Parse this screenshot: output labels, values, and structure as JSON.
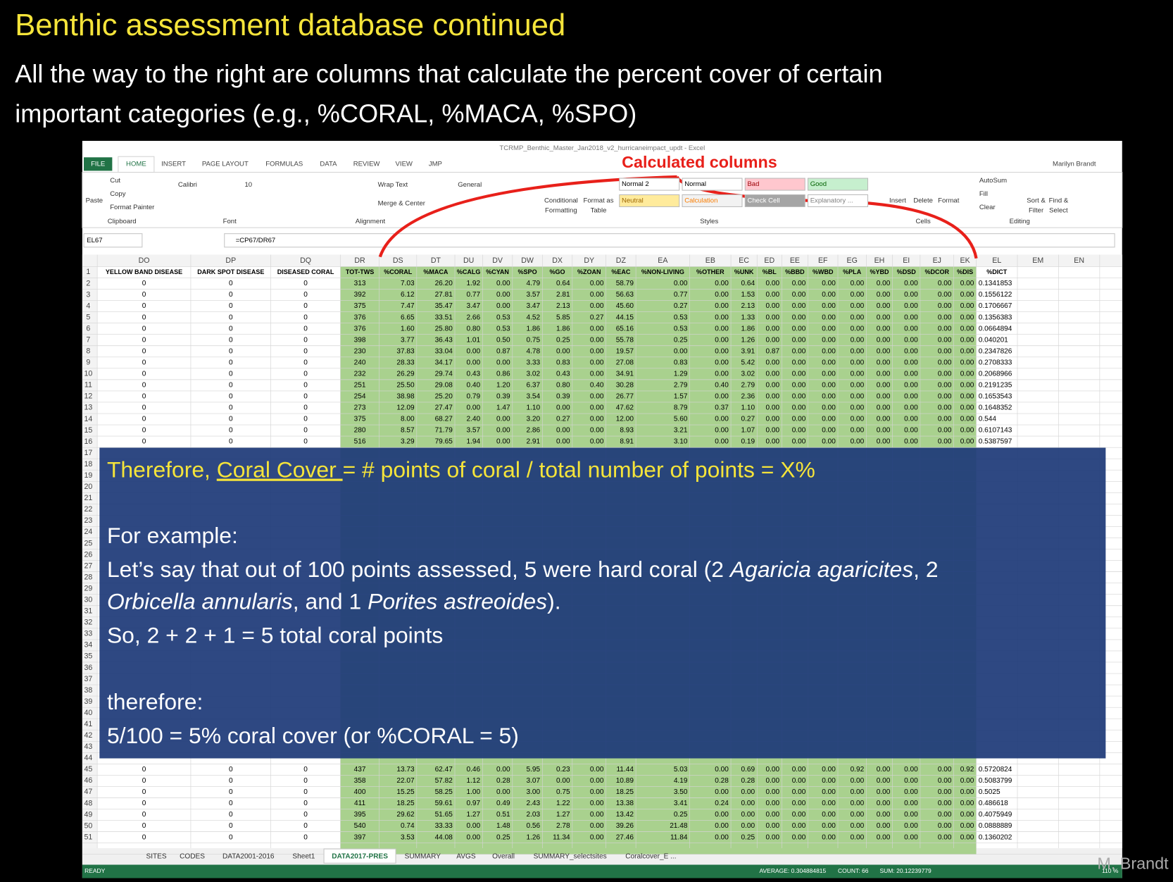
{
  "slide": {
    "title": "Benthic assessment database continued",
    "subtitle_lines": [
      "All the way to the right are columns that calculate the percent cover of certain",
      "important categories (e.g., %CORAL, %MACA, %SPO)"
    ]
  },
  "excel": {
    "window_title": "TCRMP_Benthic_Master_Jan2018_v2_hurricaneimpact_updt - Excel",
    "user": "Marilyn Brandt",
    "tabs": [
      "FILE",
      "HOME",
      "INSERT",
      "PAGE LAYOUT",
      "FORMULAS",
      "DATA",
      "REVIEW",
      "VIEW",
      "JMP"
    ],
    "ribbon": [
      "Paste",
      "Cut",
      "Copy",
      "Format Painter",
      "Clipboard",
      "Calibri",
      "10",
      "Font",
      "Wrap Text",
      "Merge & Center",
      "Alignment",
      "General",
      "Conditional",
      "Formatting",
      "Format as",
      "Table",
      "Normal 2",
      "Normal",
      "Bad",
      "Good",
      "Neutral",
      "Calculation",
      "Check Cell",
      "Explanatory ...",
      "Styles",
      "Insert",
      "Delete",
      "Format",
      "Cells",
      "AutoSum",
      "Fill",
      "Clear",
      "Sort &",
      "Filter",
      "Find &",
      "Select",
      "Editing"
    ],
    "name_box": "EL67",
    "formula": "=CP67/DR67",
    "column_letters": [
      "DO",
      "DP",
      "DQ",
      "DR",
      "DS",
      "DT",
      "DU",
      "DV",
      "DW",
      "DX",
      "DY",
      "DZ",
      "EA",
      "EB",
      "EC",
      "ED",
      "EE",
      "EF",
      "EG",
      "EH",
      "EI",
      "EJ",
      "EK",
      "EL",
      "EM",
      "EN"
    ],
    "header_row_number": 1,
    "headers": [
      "YELLOW BAND DISEASE",
      "DARK SPOT DISEASE",
      "DISEASED CORAL",
      "TOT-TWS",
      "%CORAL",
      "%MACA",
      "%CALG",
      "%CYAN",
      "%SPO",
      "%GO",
      "%ZOAN",
      "%EAC",
      "%NON-LIVING",
      "%OTHER",
      "%UNK",
      "%BL",
      "%BBD",
      "%WBD",
      "%PLA",
      "%YBD",
      "%DSD",
      "%DCOR",
      "%DIS",
      "%DICT"
    ],
    "rows": [
      {
        "number": 2,
        "cells": [
          "0",
          "0",
          "0",
          "313",
          "7.03",
          "26.20",
          "1.92",
          "0.00",
          "4.79",
          "0.64",
          "0.00",
          "58.79",
          "0.00",
          "0.00",
          "0.64",
          "0.00",
          "0.00",
          "0.00",
          "0.00",
          "0.00",
          "0.00",
          "0.00",
          "0.00",
          "0.1341853"
        ]
      },
      {
        "number": 3,
        "cells": [
          "0",
          "0",
          "0",
          "392",
          "6.12",
          "27.81",
          "0.77",
          "0.00",
          "3.57",
          "2.81",
          "0.00",
          "56.63",
          "0.77",
          "0.00",
          "1.53",
          "0.00",
          "0.00",
          "0.00",
          "0.00",
          "0.00",
          "0.00",
          "0.00",
          "0.00",
          "0.1556122"
        ]
      },
      {
        "number": 4,
        "cells": [
          "0",
          "0",
          "0",
          "375",
          "7.47",
          "35.47",
          "3.47",
          "0.00",
          "3.47",
          "2.13",
          "0.00",
          "45.60",
          "0.27",
          "0.00",
          "2.13",
          "0.00",
          "0.00",
          "0.00",
          "0.00",
          "0.00",
          "0.00",
          "0.00",
          "0.00",
          "0.1706667"
        ]
      },
      {
        "number": 5,
        "cells": [
          "0",
          "0",
          "0",
          "376",
          "6.65",
          "33.51",
          "2.66",
          "0.53",
          "4.52",
          "5.85",
          "0.27",
          "44.15",
          "0.53",
          "0.00",
          "1.33",
          "0.00",
          "0.00",
          "0.00",
          "0.00",
          "0.00",
          "0.00",
          "0.00",
          "0.00",
          "0.1356383"
        ]
      },
      {
        "number": 6,
        "cells": [
          "0",
          "0",
          "0",
          "376",
          "1.60",
          "25.80",
          "0.80",
          "0.53",
          "1.86",
          "1.86",
          "0.00",
          "65.16",
          "0.53",
          "0.00",
          "1.86",
          "0.00",
          "0.00",
          "0.00",
          "0.00",
          "0.00",
          "0.00",
          "0.00",
          "0.00",
          "0.0664894"
        ]
      },
      {
        "number": 7,
        "cells": [
          "0",
          "0",
          "0",
          "398",
          "3.77",
          "36.43",
          "1.01",
          "0.50",
          "0.75",
          "0.25",
          "0.00",
          "55.78",
          "0.25",
          "0.00",
          "1.26",
          "0.00",
          "0.00",
          "0.00",
          "0.00",
          "0.00",
          "0.00",
          "0.00",
          "0.00",
          "0.040201"
        ]
      },
      {
        "number": 8,
        "cells": [
          "0",
          "0",
          "0",
          "230",
          "37.83",
          "33.04",
          "0.00",
          "0.87",
          "4.78",
          "0.00",
          "0.00",
          "19.57",
          "0.00",
          "0.00",
          "3.91",
          "0.87",
          "0.00",
          "0.00",
          "0.00",
          "0.00",
          "0.00",
          "0.00",
          "0.00",
          "0.2347826"
        ]
      },
      {
        "number": 9,
        "cells": [
          "0",
          "0",
          "0",
          "240",
          "28.33",
          "34.17",
          "0.00",
          "0.00",
          "3.33",
          "0.83",
          "0.00",
          "27.08",
          "0.83",
          "0.00",
          "5.42",
          "0.00",
          "0.00",
          "0.00",
          "0.00",
          "0.00",
          "0.00",
          "0.00",
          "0.00",
          "0.2708333"
        ]
      },
      {
        "number": 10,
        "cells": [
          "0",
          "0",
          "0",
          "232",
          "26.29",
          "29.74",
          "0.43",
          "0.86",
          "3.02",
          "0.43",
          "0.00",
          "34.91",
          "1.29",
          "0.00",
          "3.02",
          "0.00",
          "0.00",
          "0.00",
          "0.00",
          "0.00",
          "0.00",
          "0.00",
          "0.00",
          "0.2068966"
        ]
      },
      {
        "number": 11,
        "cells": [
          "0",
          "0",
          "0",
          "251",
          "25.50",
          "29.08",
          "0.40",
          "1.20",
          "6.37",
          "0.80",
          "0.40",
          "30.28",
          "2.79",
          "0.40",
          "2.79",
          "0.00",
          "0.00",
          "0.00",
          "0.00",
          "0.00",
          "0.00",
          "0.00",
          "0.00",
          "0.2191235"
        ]
      },
      {
        "number": 12,
        "cells": [
          "0",
          "0",
          "0",
          "254",
          "38.98",
          "25.20",
          "0.79",
          "0.39",
          "3.54",
          "0.39",
          "0.00",
          "26.77",
          "1.57",
          "0.00",
          "2.36",
          "0.00",
          "0.00",
          "0.00",
          "0.00",
          "0.00",
          "0.00",
          "0.00",
          "0.00",
          "0.1653543"
        ]
      },
      {
        "number": 13,
        "cells": [
          "0",
          "0",
          "0",
          "273",
          "12.09",
          "27.47",
          "0.00",
          "1.47",
          "1.10",
          "0.00",
          "0.00",
          "47.62",
          "8.79",
          "0.37",
          "1.10",
          "0.00",
          "0.00",
          "0.00",
          "0.00",
          "0.00",
          "0.00",
          "0.00",
          "0.00",
          "0.1648352"
        ]
      },
      {
        "number": 14,
        "cells": [
          "0",
          "0",
          "0",
          "375",
          "8.00",
          "68.27",
          "2.40",
          "0.00",
          "3.20",
          "0.27",
          "0.00",
          "12.00",
          "5.60",
          "0.00",
          "0.27",
          "0.00",
          "0.00",
          "0.00",
          "0.00",
          "0.00",
          "0.00",
          "0.00",
          "0.00",
          "0.544"
        ]
      },
      {
        "number": 15,
        "cells": [
          "0",
          "0",
          "0",
          "280",
          "8.57",
          "71.79",
          "3.57",
          "0.00",
          "2.86",
          "0.00",
          "0.00",
          "8.93",
          "3.21",
          "0.00",
          "1.07",
          "0.00",
          "0.00",
          "0.00",
          "0.00",
          "0.00",
          "0.00",
          "0.00",
          "0.00",
          "0.6107143"
        ]
      },
      {
        "number": 16,
        "cells": [
          "0",
          "0",
          "0",
          "516",
          "3.29",
          "79.65",
          "1.94",
          "0.00",
          "2.91",
          "0.00",
          "0.00",
          "8.91",
          "3.10",
          "0.00",
          "0.19",
          "0.00",
          "0.00",
          "0.00",
          "0.00",
          "0.00",
          "0.00",
          "0.00",
          "0.00",
          "0.5387597"
        ]
      },
      {
        "number": 45,
        "cells": [
          "0",
          "0",
          "0",
          "437",
          "13.73",
          "62.47",
          "0.46",
          "0.00",
          "5.95",
          "0.23",
          "0.00",
          "11.44",
          "5.03",
          "0.00",
          "0.69",
          "0.00",
          "0.00",
          "0.00",
          "0.92",
          "0.00",
          "0.00",
          "0.00",
          "0.92",
          "0.5720824"
        ]
      },
      {
        "number": 46,
        "cells": [
          "0",
          "0",
          "0",
          "358",
          "22.07",
          "57.82",
          "1.12",
          "0.28",
          "3.07",
          "0.00",
          "0.00",
          "10.89",
          "4.19",
          "0.28",
          "0.28",
          "0.00",
          "0.00",
          "0.00",
          "0.00",
          "0.00",
          "0.00",
          "0.00",
          "0.00",
          "0.5083799"
        ]
      },
      {
        "number": 47,
        "cells": [
          "0",
          "0",
          "0",
          "400",
          "15.25",
          "58.25",
          "1.00",
          "0.00",
          "3.00",
          "0.75",
          "0.00",
          "18.25",
          "3.50",
          "0.00",
          "0.00",
          "0.00",
          "0.00",
          "0.00",
          "0.00",
          "0.00",
          "0.00",
          "0.00",
          "0.00",
          "0.5025"
        ]
      },
      {
        "number": 48,
        "cells": [
          "0",
          "0",
          "0",
          "411",
          "18.25",
          "59.61",
          "0.97",
          "0.49",
          "2.43",
          "1.22",
          "0.00",
          "13.38",
          "3.41",
          "0.24",
          "0.00",
          "0.00",
          "0.00",
          "0.00",
          "0.00",
          "0.00",
          "0.00",
          "0.00",
          "0.00",
          "0.486618"
        ]
      },
      {
        "number": 49,
        "cells": [
          "0",
          "0",
          "0",
          "395",
          "29.62",
          "51.65",
          "1.27",
          "0.51",
          "2.03",
          "1.27",
          "0.00",
          "13.42",
          "0.25",
          "0.00",
          "0.00",
          "0.00",
          "0.00",
          "0.00",
          "0.00",
          "0.00",
          "0.00",
          "0.00",
          "0.00",
          "0.4075949"
        ]
      },
      {
        "number": 50,
        "cells": [
          "0",
          "0",
          "0",
          "540",
          "0.74",
          "33.33",
          "0.00",
          "1.48",
          "0.56",
          "2.78",
          "0.00",
          "39.26",
          "21.48",
          "0.00",
          "0.00",
          "0.00",
          "0.00",
          "0.00",
          "0.00",
          "0.00",
          "0.00",
          "0.00",
          "0.00",
          "0.0888889"
        ]
      },
      {
        "number": 51,
        "cells": [
          "0",
          "0",
          "0",
          "397",
          "3.53",
          "44.08",
          "0.00",
          "0.25",
          "1.26",
          "11.34",
          "0.00",
          "27.46",
          "11.84",
          "0.00",
          "0.25",
          "0.00",
          "0.00",
          "0.00",
          "0.00",
          "0.00",
          "0.00",
          "0.00",
          "0.00",
          "0.1360202"
        ]
      }
    ],
    "covered_row_numbers": [
      17,
      18,
      19,
      20,
      21,
      22,
      23,
      24,
      25,
      26,
      27,
      28,
      29,
      30,
      31,
      32,
      33,
      34,
      35,
      36,
      37,
      38,
      39,
      40,
      41,
      42,
      43,
      44
    ],
    "sheet_tabs": [
      "SITES",
      "CODES",
      "DATA2001-2016",
      "Sheet1",
      "DATA2017-PRES",
      "SUMMARY",
      "AVGS",
      "Overall",
      "SUMMARY_selectsites",
      "Coralcover_E ..."
    ],
    "active_sheet": "DATA2017-PRES",
    "status": {
      "mode": "READY",
      "average": "AVERAGE: 0.304884815",
      "count": "COUNT: 66",
      "sum": "SUM: 20.12239779",
      "zoom": "110 %"
    }
  },
  "annotation": "Calculated columns",
  "overlay": {
    "lines": [
      [
        {
          "text": "Therefore, "
        },
        {
          "text": "Coral Cover ",
          "underline": true
        },
        {
          "text": "= # points of coral / total number of points = X%"
        }
      ],
      [
        {
          "text": "For example:"
        }
      ],
      [
        {
          "text": "Let’s say that out of 100 points assessed, 5 were hard coral (2 "
        },
        {
          "text": "Agaricia agaricites",
          "italic": true
        },
        {
          "text": ", 2"
        }
      ],
      [
        {
          "text": "Orbicella annularis",
          "italic": true
        },
        {
          "text": ", and 1 "
        },
        {
          "text": "Porites astreoides",
          "italic": true
        },
        {
          "text": ")."
        }
      ],
      [
        {
          "text": "So, 2 + 2 + 1 = 5 total coral points"
        }
      ],
      [
        {
          "text": "therefore:"
        }
      ],
      [
        {
          "text": "5/100 = 5% coral cover (or %CORAL = 5)"
        }
      ]
    ]
  },
  "watermark": "M. Brandt"
}
